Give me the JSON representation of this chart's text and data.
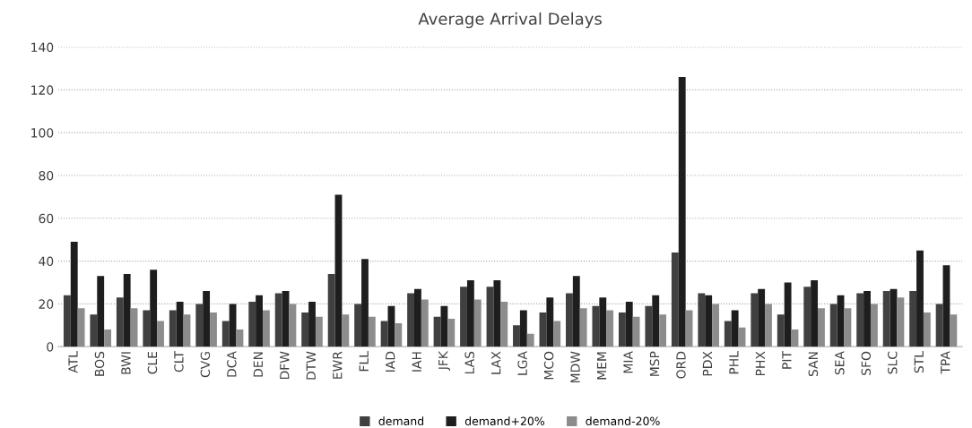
{
  "chart_data": {
    "type": "bar",
    "title": "Average Arrival Delays",
    "categories": [
      "ATL",
      "BOS",
      "BWI",
      "CLE",
      "CLT",
      "CVG",
      "DCA",
      "DEN",
      "DFW",
      "DTW",
      "EWR",
      "FLL",
      "IAD",
      "IAH",
      "JFK",
      "LAS",
      "LAX",
      "LGA",
      "MCO",
      "MDW",
      "MEM",
      "MIA",
      "MSP",
      "ORD",
      "PDX",
      "PHL",
      "PHX",
      "PIT",
      "SAN",
      "SEA",
      "SFO",
      "SLC",
      "STL",
      "TPA"
    ],
    "series": [
      {
        "name": "demand",
        "color": "#404040",
        "values": [
          24,
          15,
          23,
          17,
          17,
          20,
          12,
          21,
          25,
          16,
          34,
          20,
          12,
          25,
          14,
          28,
          28,
          10,
          16,
          25,
          19,
          16,
          19,
          44,
          25,
          12,
          25,
          15,
          28,
          20,
          25,
          26,
          26,
          20
        ]
      },
      {
        "name": "demand+20%",
        "color": "#1e1e1e",
        "values": [
          49,
          33,
          34,
          36,
          21,
          26,
          20,
          24,
          26,
          21,
          71,
          41,
          19,
          27,
          19,
          31,
          31,
          17,
          23,
          33,
          23,
          21,
          24,
          126,
          24,
          17,
          27,
          30,
          31,
          24,
          26,
          27,
          45,
          38
        ]
      },
      {
        "name": "demand-20%",
        "color": "#8c8c8c",
        "values": [
          18,
          8,
          18,
          12,
          15,
          16,
          8,
          17,
          20,
          14,
          15,
          14,
          11,
          22,
          13,
          22,
          21,
          6,
          12,
          18,
          17,
          14,
          15,
          17,
          20,
          9,
          20,
          8,
          18,
          18,
          20,
          23,
          16,
          15
        ]
      }
    ],
    "ylim": [
      0,
      140
    ],
    "yticks": [
      0,
      20,
      40,
      60,
      80,
      100,
      120,
      140
    ],
    "grid": "y",
    "legend": "bottom"
  }
}
